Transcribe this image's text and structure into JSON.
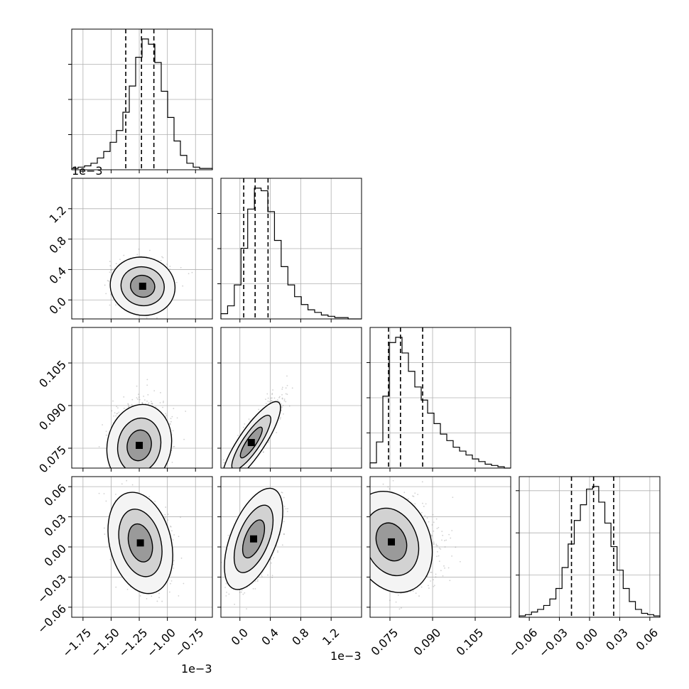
{
  "chart_data": {
    "type": "corner",
    "title": "",
    "grid": true,
    "colors": {
      "ink": "#000000",
      "grid": "#b0b0b0",
      "points": "#7a7a7a",
      "frame": "#000000"
    },
    "parameters": [
      {
        "range": [
          -1.85,
          -0.6
        ],
        "ticks": [
          -1.75,
          -1.5,
          -1.25,
          -1.0,
          -0.75
        ],
        "tick_labels": [
          "−1.75",
          "−1.50",
          "−1.25",
          "−1.00",
          "−0.75"
        ],
        "offset_label": "1e−3",
        "quantiles": [
          -1.37,
          -1.23,
          -1.12
        ],
        "mean": -1.23,
        "sd": 0.12
      },
      {
        "range": [
          -0.25,
          1.6
        ],
        "ticks": [
          0.0,
          0.4,
          0.8,
          1.2
        ],
        "tick_labels": [
          "0.0",
          "0.4",
          "0.8",
          "1.2"
        ],
        "offset_label": "1e−3",
        "quantiles": [
          0.05,
          0.2,
          0.37
        ],
        "mean": 0.2,
        "sd": 0.16
      },
      {
        "range": [
          0.068,
          0.1175
        ],
        "ticks": [
          0.075,
          0.09,
          0.105
        ],
        "tick_labels": [
          "0.075",
          "0.090",
          "0.105"
        ],
        "offset_label": "",
        "quantiles": [
          0.0745,
          0.0787,
          0.0865
        ],
        "mean": 0.0795,
        "sd": 0.006
      },
      {
        "range": [
          -0.07,
          0.07
        ],
        "ticks": [
          -0.06,
          -0.03,
          0.0,
          0.03,
          0.06
        ],
        "tick_labels": [
          "−0.06",
          "−0.03",
          "0.00",
          "0.03",
          "0.06"
        ],
        "offset_label": "",
        "quantiles": [
          -0.018,
          0.004,
          0.024
        ],
        "mean": 0.004,
        "sd": 0.021
      }
    ],
    "histograms": [
      {
        "param": 0,
        "counts": [
          1,
          2,
          3,
          5,
          9,
          14,
          21,
          30,
          44,
          64,
          86,
          100,
          96,
          82,
          60,
          40,
          22,
          11,
          5,
          2,
          1,
          1
        ]
      },
      {
        "param": 1,
        "counts": [
          4,
          10,
          26,
          54,
          84,
          100,
          98,
          82,
          60,
          40,
          26,
          17,
          11,
          7,
          5,
          3,
          2,
          1,
          1,
          0,
          0
        ]
      },
      {
        "param": 2,
        "counts": [
          4,
          20,
          55,
          96,
          100,
          88,
          74,
          62,
          52,
          42,
          34,
          26,
          21,
          16,
          13,
          10,
          7,
          5,
          3,
          2,
          1,
          0
        ]
      },
      {
        "param": 3,
        "counts": [
          1,
          2,
          4,
          6,
          9,
          14,
          22,
          38,
          56,
          74,
          86,
          98,
          100,
          88,
          72,
          54,
          36,
          22,
          12,
          6,
          3,
          2,
          1
        ]
      }
    ],
    "hist_y_ticks": [
      [
        0.25,
        0.5,
        0.75
      ],
      [
        0.25,
        0.5,
        0.75
      ],
      [
        0.25,
        0.5,
        0.75
      ],
      [
        0.3,
        0.6,
        0.9
      ]
    ],
    "pairs": [
      {
        "x": 0,
        "y": 1,
        "rho": -0.05,
        "peak": [
          -1.22,
          0.18
        ]
      },
      {
        "x": 0,
        "y": 2,
        "rho": 0.1,
        "peak": [
          -1.25,
          0.076
        ]
      },
      {
        "x": 1,
        "y": 2,
        "rho": 0.85,
        "peak": [
          0.15,
          0.077
        ]
      },
      {
        "x": 0,
        "y": 3,
        "rho": -0.25,
        "peak": [
          -1.24,
          0.004
        ]
      },
      {
        "x": 1,
        "y": 3,
        "rho": 0.55,
        "peak": [
          0.18,
          0.008
        ]
      },
      {
        "x": 2,
        "y": 3,
        "rho": -0.2,
        "peak": [
          0.0755,
          0.005
        ]
      }
    ]
  }
}
